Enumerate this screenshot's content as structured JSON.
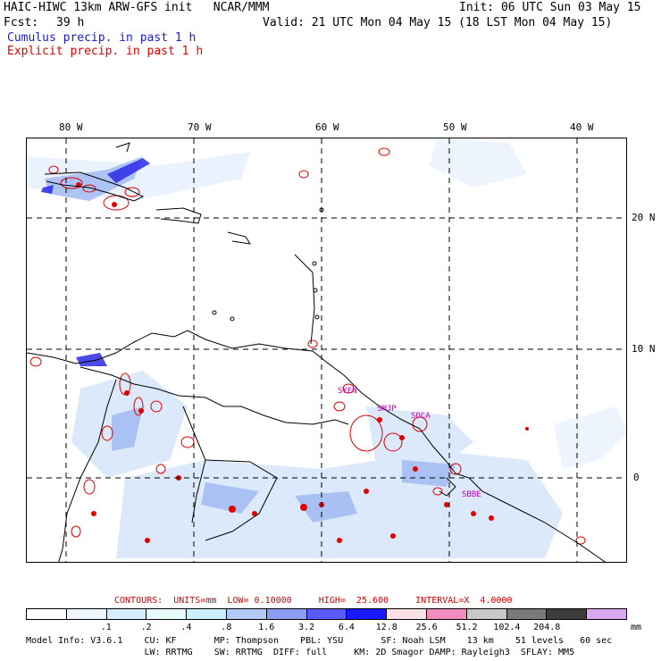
{
  "header": {
    "title_left": "HAIC-HIWC 13km ARW-GFS init   NCAR/MMM",
    "init": "Init: 06 UTC Sun 03 May 15",
    "fcst_label": "Fcst:",
    "fcst_value": "39 h",
    "valid": "Valid: 21 UTC Mon 04 May 15 (18 LST Mon 04 May 15)",
    "legend_cumulus": "Cumulus precip. in past 1 h",
    "legend_explicit": "Explicit precip. in past 1 h",
    "colors": {
      "cumulus": "#1a1aff",
      "explicit": "#e00000"
    }
  },
  "map": {
    "lon_labels": [
      "80 W",
      "70 W",
      "60 W",
      "50 W",
      "40 W"
    ],
    "lat_labels": [
      "20 N",
      "10 N",
      "0"
    ],
    "sites": [
      "SYEN",
      "SMJP",
      "SOCA",
      "SBBE"
    ]
  },
  "contours": {
    "label": "CONTOURS:  UNITS=mm  LOW= 0.10000     HIGH=  25.600     INTERVAL=X  4.0000"
  },
  "colorbar": {
    "colors": [
      "#ffffff",
      "#eef7ff",
      "#d9ecff",
      "#e8fbfb",
      "#cdeefb",
      "#b4c8f5",
      "#8c9cf0",
      "#5a5aff",
      "#1a1aff",
      "#fbe0e6",
      "#f08cc0",
      "#c8c8c8",
      "#7a7a7a",
      "#3c3c3c",
      "#d8a8f0"
    ],
    "ticks": [
      ".1",
      ".2",
      ".4",
      ".8",
      "1.6",
      "3.2",
      "6.4",
      "12.8",
      "25.6",
      "51.2",
      "102.4",
      "204.8"
    ],
    "units": "mm"
  },
  "footer": {
    "line1": "Model Info: V3.6.1    CU: KF       MP: Thompson    PBL: YSU       SF: Noah LSM    13 km    51 levels   60 sec",
    "line2": "                      LW: RRTMG    SW: RRTMG  DIFF: full     KM: 2D Smagor DAMP: Rayleigh3  SFLAY: MM5"
  }
}
